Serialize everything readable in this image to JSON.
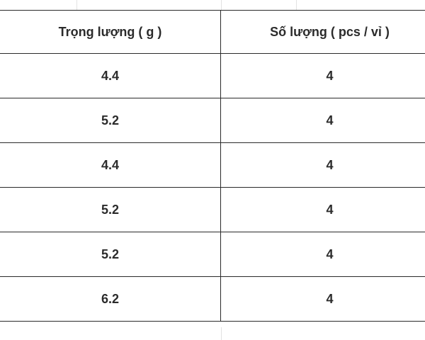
{
  "table": {
    "headers": [
      "Trọng lượng ( g )",
      "Số lượng ( pcs / vỉ )"
    ],
    "rows": [
      [
        "4.4",
        "4"
      ],
      [
        "5.2",
        "4"
      ],
      [
        "4.4",
        "4"
      ],
      [
        "5.2",
        "4"
      ],
      [
        "5.2",
        "4"
      ],
      [
        "6.2",
        "4"
      ]
    ]
  }
}
